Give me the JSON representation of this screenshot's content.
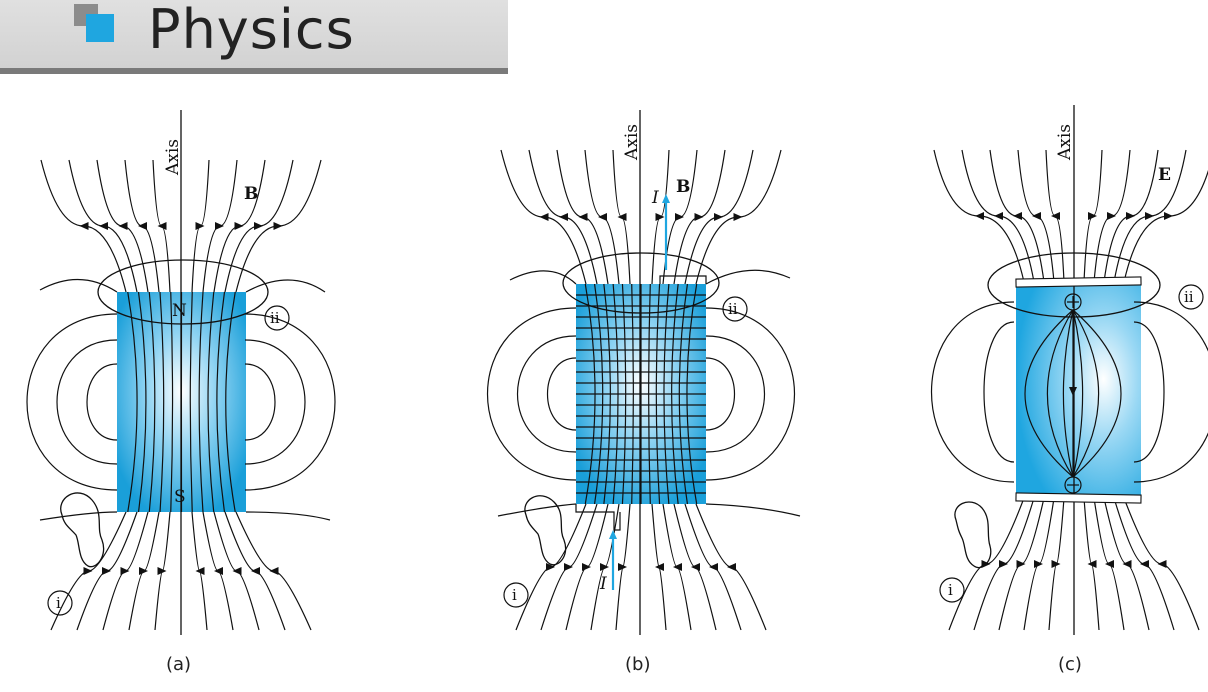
{
  "header": {
    "title": "Physics"
  },
  "panels": [
    {
      "caption": "(a)",
      "axis_label": "Axis",
      "field_label": "B",
      "north_label": "N",
      "south_label": "S",
      "loop_i": "i",
      "loop_ii": "ii"
    },
    {
      "caption": "(b)",
      "axis_label": "Axis",
      "field_label": "B",
      "current_label_top": "I",
      "current_label_bottom": "I",
      "loop_i": "i",
      "loop_ii": "ii"
    },
    {
      "caption": "(c)",
      "axis_label": "Axis",
      "field_label": "E",
      "loop_i": "i",
      "loop_ii": "ii"
    }
  ],
  "colors": {
    "accent": "#1fa6e0",
    "dark": "#111111"
  }
}
